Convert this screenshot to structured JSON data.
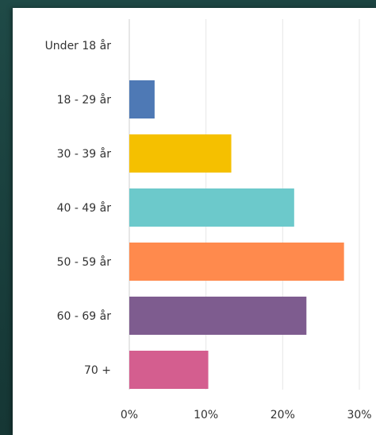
{
  "chart_data": {
    "type": "bar",
    "orientation": "horizontal",
    "categories": [
      "Under 18 år",
      "18 - 29 år",
      "30 - 39 år",
      "40 - 49 år",
      "50 - 59 år",
      "60 - 69 år",
      "70 +"
    ],
    "values": [
      0,
      3.3,
      13.3,
      21.5,
      28.0,
      23.1,
      10.3
    ],
    "colors": [
      "#5b9bd5",
      "#4e79b5",
      "#f5c000",
      "#6cc9cb",
      "#ff8a4d",
      "#7e5c8f",
      "#d45e8f"
    ],
    "xlim": [
      0,
      30
    ],
    "x_ticks": [
      "0%",
      "10%",
      "20%",
      "30%"
    ],
    "x_tick_values": [
      0,
      10,
      20,
      30
    ],
    "grid": true,
    "title": "",
    "xlabel": "",
    "ylabel": ""
  }
}
